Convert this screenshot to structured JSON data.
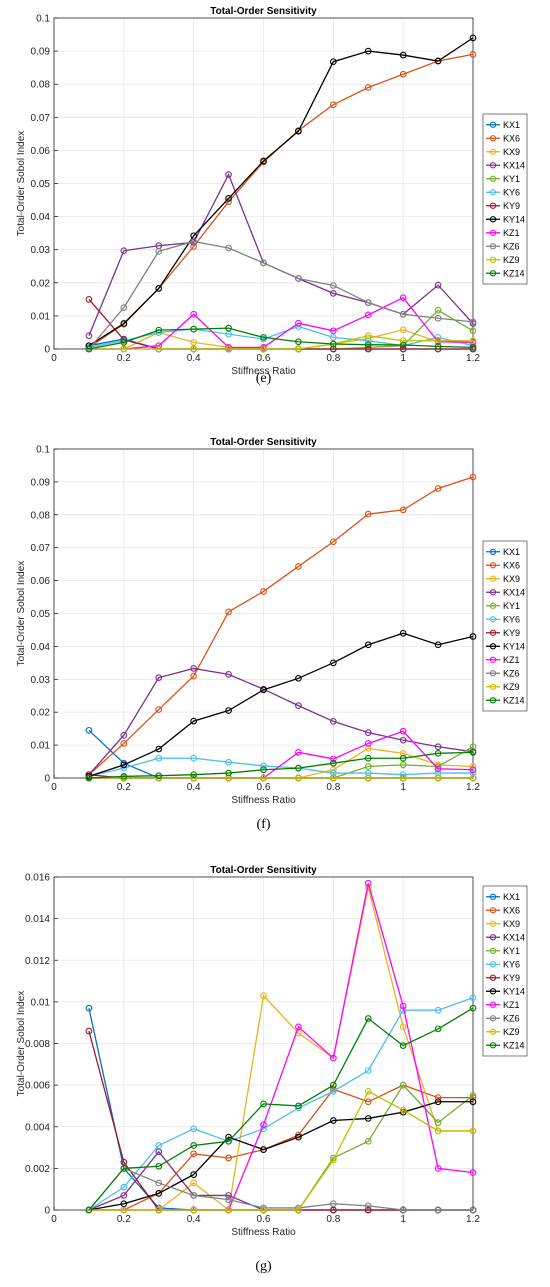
{
  "series_names": [
    "KX1",
    "KX6",
    "KX9",
    "KX14",
    "KY1",
    "KY6",
    "KY9",
    "KY14",
    "KZ1",
    "KZ6",
    "KZ9",
    "KZ14"
  ],
  "series_colors": [
    "#0072BD",
    "#D95319",
    "#EDB120",
    "#7E2F8E",
    "#77AC30",
    "#4DBEEE",
    "#A2142F",
    "#000000",
    "#FF00FF",
    "#808080",
    "#BFBF00",
    "#008000"
  ],
  "chart_data": [
    {
      "type": "line",
      "caption": "(e)",
      "title": "Total-Order Sensitivity",
      "xlabel": "Stiffness Ratio",
      "ylabel": "Total-Order Sobol Index",
      "xlim": [
        0,
        1.2
      ],
      "ylim": [
        0,
        0.1
      ],
      "xticks": [
        0,
        0.2,
        0.4,
        0.6,
        0.8,
        1,
        1.2
      ],
      "yticks": [
        0,
        0.01,
        0.02,
        0.03,
        0.04,
        0.05,
        0.06,
        0.07,
        0.08,
        0.09,
        0.1
      ],
      "x": [
        0.1,
        0.2,
        0.3,
        0.4,
        0.5,
        0.6,
        0.7,
        0.8,
        0.9,
        1.0,
        1.1,
        1.2
      ],
      "grid": true,
      "legend": "right",
      "series": [
        {
          "name": "KX1",
          "values": [
            0.001,
            0.003,
            0.0,
            0.0,
            0.0,
            0.0,
            0.0,
            0.0,
            0.0,
            0.0,
            0.0,
            0.0
          ]
        },
        {
          "name": "KX6",
          "values": [
            0.0005,
            0.0075,
            0.0183,
            0.031,
            0.0445,
            0.0565,
            0.066,
            0.0738,
            0.079,
            0.083,
            0.087,
            0.089
          ]
        },
        {
          "name": "KX9",
          "values": [
            0.0,
            0.0,
            0.005,
            0.002,
            0.0005,
            0.0,
            0.0,
            0.0015,
            0.0032,
            0.0058,
            0.0022,
            0.002
          ]
        },
        {
          "name": "KX14",
          "values": [
            0.004,
            0.0297,
            0.0312,
            0.0322,
            0.0527,
            0.026,
            0.0213,
            0.0168,
            0.014,
            0.0105,
            0.0193,
            0.0077
          ]
        },
        {
          "name": "KY1",
          "values": [
            0.0,
            0.0,
            0.0,
            0.0,
            0.0,
            0.0,
            0.0,
            0.0,
            0.0005,
            0.001,
            0.0117,
            0.0055
          ]
        },
        {
          "name": "KY6",
          "values": [
            0.0005,
            0.0025,
            0.005,
            0.006,
            0.0045,
            0.003,
            0.0068,
            0.0035,
            0.0025,
            0.001,
            0.0035,
            0.001
          ]
        },
        {
          "name": "KY9",
          "values": [
            0.015,
            0.0028,
            0.0,
            0.0,
            0.0,
            0.0,
            0.0,
            0.0,
            0.0,
            0.0,
            0.0,
            0.0
          ]
        },
        {
          "name": "KY14",
          "values": [
            0.001,
            0.0077,
            0.0183,
            0.0342,
            0.0455,
            0.0568,
            0.0658,
            0.0868,
            0.09,
            0.0888,
            0.087,
            0.094
          ]
        },
        {
          "name": "KZ1",
          "values": [
            0.0,
            0.0,
            0.001,
            0.0105,
            0.0005,
            0.0005,
            0.0078,
            0.0055,
            0.0103,
            0.0155,
            0.0022,
            0.002
          ]
        },
        {
          "name": "KZ6",
          "values": [
            0.0,
            0.0125,
            0.0295,
            0.0325,
            0.0305,
            0.026,
            0.0213,
            0.0192,
            0.014,
            0.0105,
            0.0093,
            0.0082
          ]
        },
        {
          "name": "KZ9",
          "values": [
            0.0,
            0.0,
            0.0,
            0.0,
            0.0,
            0.0,
            0.0,
            0.0015,
            0.004,
            0.0025,
            0.0025,
            0.0025
          ]
        },
        {
          "name": "KZ14",
          "values": [
            0.0,
            0.002,
            0.0057,
            0.006,
            0.0063,
            0.0035,
            0.0022,
            0.0015,
            0.0013,
            0.0012,
            0.0008,
            0.0005
          ]
        }
      ]
    },
    {
      "type": "line",
      "caption": "(f)",
      "title": "Total-Order Sensitivity",
      "xlabel": "Stiffness Ratio",
      "ylabel": "Total-Order Sobol Index",
      "xlim": [
        0,
        1.2
      ],
      "ylim": [
        0,
        0.1
      ],
      "xticks": [
        0,
        0.2,
        0.4,
        0.6,
        0.8,
        1,
        1.2
      ],
      "yticks": [
        0,
        0.01,
        0.02,
        0.03,
        0.04,
        0.05,
        0.06,
        0.07,
        0.08,
        0.09,
        0.1
      ],
      "x": [
        0.1,
        0.2,
        0.3,
        0.4,
        0.5,
        0.6,
        0.7,
        0.8,
        0.9,
        1.0,
        1.1,
        1.2
      ],
      "grid": true,
      "legend": "right",
      "series": [
        {
          "name": "KX1",
          "values": [
            0.0145,
            0.0045,
            0.0,
            0.0,
            0.0,
            0.0,
            0.0,
            0.0,
            0.0,
            0.0,
            0.0,
            0.0
          ]
        },
        {
          "name": "KX6",
          "values": [
            0.001,
            0.0105,
            0.0208,
            0.031,
            0.0505,
            0.0567,
            0.0643,
            0.0718,
            0.0802,
            0.0815,
            0.088,
            0.0915
          ]
        },
        {
          "name": "KX9",
          "values": [
            0.0,
            0.0,
            0.0,
            0.0,
            0.0,
            0.0,
            0.0,
            0.0025,
            0.009,
            0.0075,
            0.004,
            0.0035
          ]
        },
        {
          "name": "KX14",
          "values": [
            0.001,
            0.013,
            0.0305,
            0.0333,
            0.0315,
            0.027,
            0.022,
            0.0172,
            0.0138,
            0.0115,
            0.0095,
            0.008
          ]
        },
        {
          "name": "KY1",
          "values": [
            0.0,
            0.0,
            0.0,
            0.0,
            0.0,
            0.0,
            0.0,
            0.0,
            0.0035,
            0.004,
            0.0035,
            0.0095
          ]
        },
        {
          "name": "KY6",
          "values": [
            0.0005,
            0.003,
            0.006,
            0.006,
            0.0048,
            0.0037,
            0.003,
            0.0015,
            0.0015,
            0.001,
            0.0015,
            0.0015
          ]
        },
        {
          "name": "KY9",
          "values": [
            0.001,
            0.0,
            0.0,
            0.0,
            0.0,
            0.0,
            0.0,
            0.0,
            0.0,
            0.0,
            0.0,
            0.0
          ]
        },
        {
          "name": "KY14",
          "values": [
            0.0005,
            0.004,
            0.0088,
            0.0173,
            0.0205,
            0.0268,
            0.0303,
            0.035,
            0.0405,
            0.044,
            0.0405,
            0.043
          ]
        },
        {
          "name": "KZ1",
          "values": [
            0.0,
            0.0,
            0.0,
            0.0,
            0.0,
            0.0,
            0.0078,
            0.0058,
            0.0105,
            0.0142,
            0.0028,
            0.0025
          ]
        },
        {
          "name": "KZ6",
          "values": [
            0.0,
            0.0,
            0.0,
            0.0,
            0.0,
            0.0,
            0.0,
            0.0,
            0.0,
            0.0,
            0.0,
            0.0
          ]
        },
        {
          "name": "KZ9",
          "values": [
            0.0,
            0.0,
            0.0,
            0.0,
            0.0,
            0.0,
            0.0,
            0.0,
            0.0,
            0.0,
            0.0,
            0.0
          ]
        },
        {
          "name": "KZ14",
          "values": [
            0.0,
            0.0005,
            0.0007,
            0.001,
            0.0015,
            0.0025,
            0.003,
            0.0045,
            0.006,
            0.006,
            0.0075,
            0.0078
          ]
        }
      ]
    },
    {
      "type": "line",
      "caption": "(g)",
      "title": "Total-Order Sensitivity",
      "xlabel": "Stiffness Ratio",
      "ylabel": "Total-Order Sobol Index",
      "xlim": [
        0,
        1.2
      ],
      "ylim": [
        0,
        0.016
      ],
      "xticks": [
        0,
        0.2,
        0.4,
        0.6,
        0.8,
        1,
        1.2
      ],
      "yticks": [
        0,
        0.002,
        0.004,
        0.006,
        0.008,
        0.01,
        0.012,
        0.014,
        0.016
      ],
      "x": [
        0.1,
        0.2,
        0.3,
        0.4,
        0.5,
        0.6,
        0.7,
        0.8,
        0.9,
        1.0,
        1.1,
        1.2
      ],
      "grid": true,
      "legend": "right",
      "series": [
        {
          "name": "KX1",
          "values": [
            0.0097,
            0.002,
            0.0001,
            0.0,
            0.0,
            0.0,
            0.0,
            0.0,
            0.0,
            0.0,
            0.0,
            0.0
          ]
        },
        {
          "name": "KX6",
          "values": [
            0.0,
            0.0,
            0.0008,
            0.0027,
            0.0025,
            0.0029,
            0.0036,
            0.0058,
            0.0052,
            0.006,
            0.0054,
            0.0054
          ]
        },
        {
          "name": "KX9",
          "values": [
            0.0,
            0.0,
            0.0,
            0.0013,
            0.0,
            0.0103,
            0.0085,
            0.0073,
            0.0155,
            0.0088,
            0.0038,
            0.0038
          ]
        },
        {
          "name": "KX14",
          "values": [
            0.0,
            0.0007,
            0.0028,
            0.0007,
            0.0007,
            0.0,
            0.0,
            0.0,
            0.0,
            0.0,
            0.0,
            0.0
          ]
        },
        {
          "name": "KY1",
          "values": [
            0.0,
            0.0,
            0.0,
            0.0,
            0.0,
            0.0,
            0.0,
            0.0025,
            0.0033,
            0.006,
            0.0042,
            0.0055
          ]
        },
        {
          "name": "KY6",
          "values": [
            0.0,
            0.0011,
            0.0031,
            0.0039,
            0.0033,
            0.0039,
            0.0049,
            0.0057,
            0.0067,
            0.0096,
            0.0096,
            0.0102
          ]
        },
        {
          "name": "KY9",
          "values": [
            0.0086,
            0.0023,
            0.0,
            0.0,
            0.0,
            0.0,
            0.0,
            0.0,
            0.0,
            0.0,
            0.0,
            0.0
          ]
        },
        {
          "name": "KY14",
          "values": [
            0.0,
            0.0003,
            0.0008,
            0.0017,
            0.0035,
            0.0029,
            0.0035,
            0.0043,
            0.0044,
            0.0047,
            0.0052,
            0.0052
          ]
        },
        {
          "name": "KZ1",
          "values": [
            0.0,
            0.0,
            0.0,
            0.0,
            0.0,
            0.0041,
            0.0088,
            0.0073,
            0.0157,
            0.0098,
            0.002,
            0.0018
          ]
        },
        {
          "name": "KZ6",
          "values": [
            0.0,
            0.002,
            0.0013,
            0.0007,
            0.0005,
            0.0001,
            0.0001,
            0.0003,
            0.0002,
            0.0,
            0.0,
            0.0
          ]
        },
        {
          "name": "KZ9",
          "values": [
            0.0,
            0.0,
            0.0,
            0.0,
            0.0,
            0.0,
            0.0,
            0.0024,
            0.0057,
            0.0048,
            0.0038,
            0.0038
          ]
        },
        {
          "name": "KZ14",
          "values": [
            0.0,
            0.002,
            0.0021,
            0.0031,
            0.0033,
            0.0051,
            0.005,
            0.006,
            0.0092,
            0.0079,
            0.0087,
            0.0097
          ]
        }
      ]
    }
  ]
}
